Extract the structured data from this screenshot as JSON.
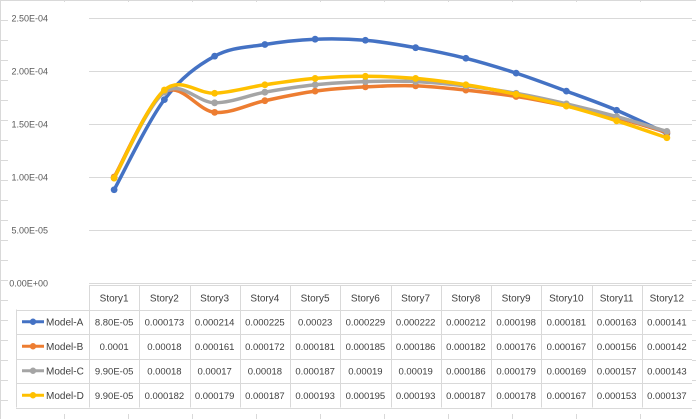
{
  "chart_data": {
    "type": "line",
    "title": "",
    "xlabel": "",
    "ylabel": "",
    "categories": [
      "Story1",
      "Story2",
      "Story3",
      "Story4",
      "Story5",
      "Story6",
      "Story7",
      "Story8",
      "Story9",
      "Story10",
      "Story11",
      "Story12"
    ],
    "ylim": [
      0,
      0.00025
    ],
    "yticks": [
      0,
      5e-05,
      0.0001,
      0.00015,
      0.0002,
      0.00025
    ],
    "ytick_labels": [
      "0.00E+00",
      "5.00E-05",
      "1.00E-04",
      "1.50E-04",
      "2.00E-04",
      "2.50E-04"
    ],
    "grid": true,
    "legend": "data-table",
    "series": [
      {
        "name": "Model-A",
        "color": "#4472C4",
        "values": [
          8.8e-05,
          0.000173,
          0.000214,
          0.000225,
          0.00023,
          0.000229,
          0.000222,
          0.000212,
          0.000198,
          0.000181,
          0.000163,
          0.000141
        ],
        "labels": [
          "8.80E-05",
          "0.000173",
          "0.000214",
          "0.000225",
          "0.00023",
          "0.000229",
          "0.000222",
          "0.000212",
          "0.000198",
          "0.000181",
          "0.000163",
          "0.000141"
        ]
      },
      {
        "name": "Model-B",
        "color": "#ED7D31",
        "values": [
          0.0001,
          0.00018,
          0.000161,
          0.000172,
          0.000181,
          0.000185,
          0.000186,
          0.000182,
          0.000176,
          0.000167,
          0.000156,
          0.000142
        ],
        "labels": [
          "0.0001",
          "0.00018",
          "0.000161",
          "0.000172",
          "0.000181",
          "0.000185",
          "0.000186",
          "0.000182",
          "0.000176",
          "0.000167",
          "0.000156",
          "0.000142"
        ]
      },
      {
        "name": "Model-C",
        "color": "#A5A5A5",
        "values": [
          9.9e-05,
          0.00018,
          0.00017,
          0.00018,
          0.000187,
          0.00019,
          0.00019,
          0.000186,
          0.000179,
          0.000169,
          0.000157,
          0.000143
        ],
        "labels": [
          "9.90E-05",
          "0.00018",
          "0.00017",
          "0.00018",
          "0.000187",
          "0.00019",
          "0.00019",
          "0.000186",
          "0.000179",
          "0.000169",
          "0.000157",
          "0.000143"
        ]
      },
      {
        "name": "Model-D",
        "color": "#FFC000",
        "values": [
          9.9e-05,
          0.000182,
          0.000179,
          0.000187,
          0.000193,
          0.000195,
          0.000193,
          0.000187,
          0.000178,
          0.000167,
          0.000153,
          0.000137
        ],
        "labels": [
          "9.90E-05",
          "0.000182",
          "0.000179",
          "0.000187",
          "0.000193",
          "0.000195",
          "0.000193",
          "0.000187",
          "0.000178",
          "0.000167",
          "0.000153",
          "0.000137"
        ]
      }
    ]
  }
}
